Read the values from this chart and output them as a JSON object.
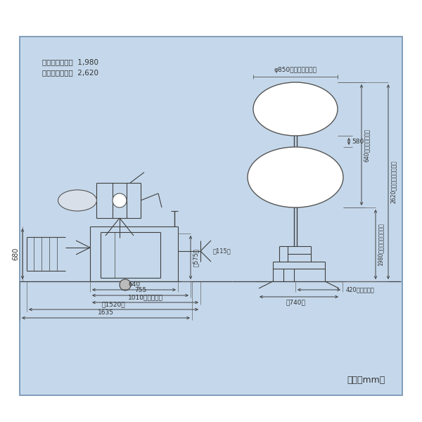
{
  "bg_color": "#c5d8eb",
  "border_color": "#7090b0",
  "line_color": "#404040",
  "dim_color": "#404040",
  "title_line1": "マスト最小高さ  1,980",
  "title_line2": "マスト最大高さ  2,620",
  "unit_text": "単位（mm）",
  "balloon_label": "φ850（バルーン径）",
  "dim_580": "580",
  "dim_640stroke": "640（ストローク）",
  "dim_1980": "1980（マスト最小高さ）",
  "dim_2620": "2620（マスト最大高さ）",
  "dim_420": "420（収納時）",
  "dim_740": "（740）",
  "dim_680": "680",
  "dim_575": "（575）",
  "dim_115": "（115）",
  "dim_640b": "640",
  "dim_755": "755",
  "dim_1010": "1010（収納時）",
  "dim_1520": "（1520）",
  "dim_1635": "1635"
}
